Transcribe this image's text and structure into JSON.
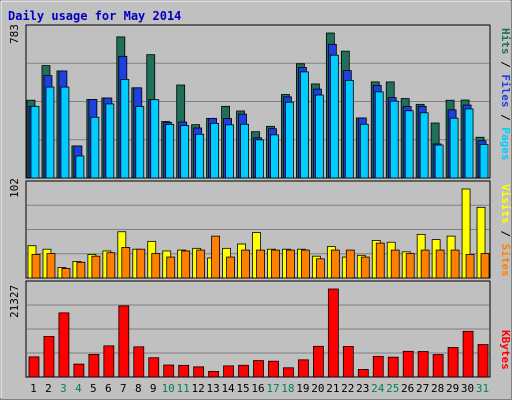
{
  "chart_data": [
    {
      "type": "bar",
      "title": "Daily usage for May 2014",
      "categories": [
        "1",
        "2",
        "3",
        "4",
        "5",
        "6",
        "7",
        "8",
        "9",
        "10",
        "11",
        "12",
        "13",
        "14",
        "15",
        "16",
        "17",
        "18",
        "19",
        "20",
        "21",
        "22",
        "23",
        "24",
        "25",
        "26",
        "27",
        "28",
        "29",
        "30",
        "31"
      ],
      "weekend_days": [
        "3",
        "4",
        "10",
        "11",
        "17",
        "18",
        "24",
        "25",
        "31"
      ],
      "ylabel": "Pages / Files / Hits",
      "ytick_max_label": "783",
      "ylim": [
        0,
        783
      ],
      "series": [
        {
          "name": "Hits",
          "color": "#1f6f5a",
          "values": [
            420,
            607,
            578,
            173,
            424,
            432,
            762,
            487,
            666,
            305,
            502,
            288,
            322,
            387,
            362,
            250,
            279,
            451,
            617,
            508,
            783,
            685,
            324,
            519,
            519,
            429,
            398,
            297,
            420,
            421,
            220
          ]
        },
        {
          "name": "Files",
          "color": "#1f3fe0",
          "values": [
            387,
            553,
            578,
            173,
            424,
            432,
            657,
            487,
            423,
            300,
            302,
            270,
            322,
            321,
            345,
            217,
            266,
            438,
            597,
            480,
            722,
            580,
            324,
            500,
            434,
            386,
            387,
            184,
            368,
            394,
            201
          ]
        },
        {
          "name": "Pages",
          "color": "#00ccff",
          "values": [
            387,
            491,
            491,
            119,
            328,
            400,
            532,
            386,
            423,
            289,
            283,
            236,
            295,
            287,
            290,
            206,
            233,
            409,
            573,
            448,
            663,
            527,
            290,
            465,
            415,
            363,
            352,
            178,
            323,
            373,
            181
          ]
        }
      ]
    },
    {
      "type": "bar",
      "categories": [
        "1",
        "2",
        "3",
        "4",
        "5",
        "6",
        "7",
        "8",
        "9",
        "10",
        "11",
        "12",
        "13",
        "14",
        "15",
        "16",
        "17",
        "18",
        "19",
        "20",
        "21",
        "22",
        "23",
        "24",
        "25",
        "26",
        "27",
        "28",
        "29",
        "30",
        "31"
      ],
      "ylabel": "Sites / Visits",
      "ytick_max_label": "102",
      "ylim": [
        0,
        102
      ],
      "series": [
        {
          "name": "Visits",
          "color": "#ffff00",
          "values": [
            37,
            33,
            12,
            19,
            27,
            31,
            53,
            33,
            42,
            31,
            32,
            34,
            23,
            34,
            39,
            52,
            33,
            33,
            33,
            25,
            36,
            24,
            26,
            43,
            41,
            30,
            50,
            44,
            48,
            102,
            81
          ]
        },
        {
          "name": "Sites",
          "color": "#ff8000",
          "values": [
            27,
            28,
            11,
            18,
            25,
            29,
            35,
            33,
            28,
            24,
            31,
            32,
            48,
            24,
            32,
            32,
            32,
            32,
            32,
            22,
            32,
            32,
            24,
            40,
            32,
            28,
            32,
            32,
            32,
            27,
            28
          ]
        }
      ]
    },
    {
      "type": "bar",
      "categories": [
        "1",
        "2",
        "3",
        "4",
        "5",
        "6",
        "7",
        "8",
        "9",
        "10",
        "11",
        "12",
        "13",
        "14",
        "15",
        "16",
        "17",
        "18",
        "19",
        "20",
        "21",
        "22",
        "23",
        "24",
        "25",
        "26",
        "27",
        "28",
        "29",
        "30",
        "31"
      ],
      "ylabel": "KBytes",
      "ytick_max_label": "21327",
      "ylim": [
        0,
        21327
      ],
      "series": [
        {
          "name": "KBytes",
          "color": "#ff0000",
          "values": [
            4883,
            9837,
            15542,
            3131,
            5482,
            7549,
            17227,
            7316,
            4670,
            2905,
            2828,
            2463,
            1357,
            2698,
            2843,
            3979,
            3830,
            2236,
            4159,
            7437,
            21327,
            7414,
            1835,
            5001,
            4808,
            6222,
            6176,
            5447,
            7153,
            11072,
            7860
          ]
        }
      ]
    }
  ]
}
